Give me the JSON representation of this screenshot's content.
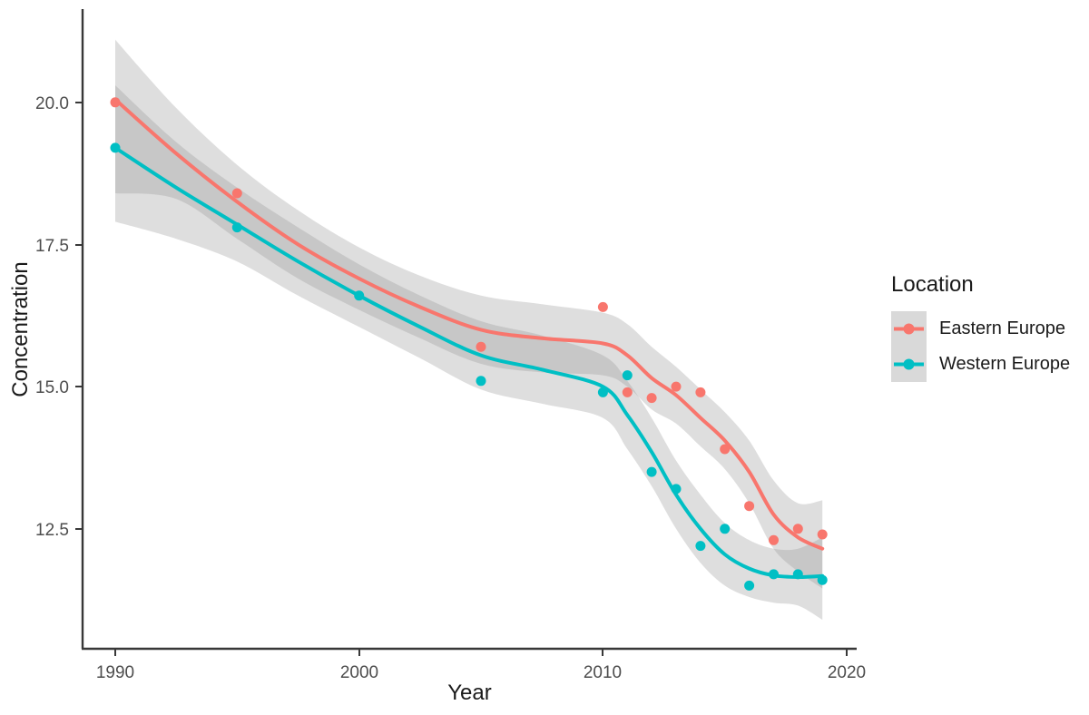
{
  "figure": {
    "background": "#ffffff"
  },
  "chart_data": {
    "type": "scatter",
    "smoother": "loess smooth lines with 95% confidence ribbons",
    "title": "",
    "xlabel": "Year",
    "ylabel": "Concentration",
    "x_ticks": [
      "1990",
      "2000",
      "2010",
      "2020"
    ],
    "x_tick_years": [
      1990,
      2000,
      2010,
      2020
    ],
    "y_ticks": [
      "12.5",
      "15.0",
      "17.5",
      "20.0"
    ],
    "y_tick_values": [
      12.5,
      15.0,
      17.5,
      20.0
    ],
    "xlim": [
      1988.66,
      2020.63
    ],
    "ylim": [
      10.39,
      21.64
    ],
    "grid": "off",
    "legend": {
      "title": "Location",
      "position": "right",
      "key_background": "#D9D9D9"
    },
    "band_color": "#999999",
    "band_opacity": 0.32,
    "axis_color": "#383838",
    "tick_label_color": "#4d4d4d",
    "series": [
      {
        "name": "Eastern Europe",
        "color": "#F8766D",
        "points": {
          "years": [
            1990,
            1995,
            2005,
            2010,
            2011,
            2012,
            2013,
            2014,
            2015,
            2016,
            2017,
            2018,
            2019
          ],
          "values": [
            20.0,
            18.4,
            15.7,
            16.4,
            14.9,
            14.8,
            15.0,
            14.9,
            13.9,
            12.9,
            12.3,
            12.5,
            12.4
          ]
        },
        "smooth": {
          "years": [
            1990,
            1992.5,
            1995,
            1997.5,
            2000,
            2002.5,
            2005,
            2007.5,
            2010,
            2011,
            2012,
            2013,
            2014,
            2015,
            2016,
            2017,
            2018,
            2019
          ],
          "values": [
            20.05,
            19.1,
            18.25,
            17.5,
            16.9,
            16.4,
            16.0,
            15.85,
            15.76,
            15.55,
            15.15,
            14.85,
            14.45,
            14.05,
            13.5,
            12.75,
            12.35,
            12.15
          ],
          "upper": [
            21.1,
            19.9,
            18.9,
            18.1,
            17.45,
            16.95,
            16.6,
            16.45,
            16.3,
            16.1,
            15.7,
            15.35,
            14.95,
            14.55,
            14.05,
            13.35,
            12.95,
            13.0
          ],
          "lower": [
            18.4,
            18.3,
            17.6,
            16.9,
            16.35,
            15.85,
            15.4,
            15.25,
            15.2,
            15.0,
            14.6,
            14.35,
            13.95,
            13.55,
            12.95,
            12.15,
            11.75,
            11.45
          ]
        }
      },
      {
        "name": "Western Europe",
        "color": "#00BFC4",
        "points": {
          "years": [
            1990,
            1995,
            2000,
            2005,
            2010,
            2011,
            2012,
            2013,
            2014,
            2015,
            2016,
            2017,
            2018,
            2019
          ],
          "values": [
            19.2,
            17.8,
            16.6,
            15.1,
            14.9,
            15.2,
            13.5,
            13.2,
            12.2,
            12.5,
            11.5,
            11.7,
            11.7,
            11.6
          ]
        },
        "smooth": {
          "years": [
            1990,
            1992.5,
            1995,
            1997.5,
            2000,
            2002.5,
            2005,
            2007.5,
            2010,
            2011,
            2012,
            2013,
            2014,
            2015,
            2016,
            2017,
            2018,
            2019
          ],
          "values": [
            19.2,
            18.5,
            17.85,
            17.2,
            16.6,
            16.05,
            15.55,
            15.3,
            15.0,
            14.5,
            13.85,
            13.1,
            12.5,
            12.05,
            11.8,
            11.68,
            11.65,
            11.67
          ],
          "upper": [
            20.3,
            19.3,
            18.5,
            17.8,
            17.15,
            16.6,
            16.15,
            15.9,
            15.55,
            15.1,
            14.45,
            13.7,
            13.1,
            12.6,
            12.3,
            12.15,
            12.15,
            12.35
          ],
          "lower": [
            17.9,
            17.6,
            17.2,
            16.6,
            16.05,
            15.5,
            14.95,
            14.7,
            14.45,
            13.9,
            13.25,
            12.5,
            11.9,
            11.5,
            11.3,
            11.2,
            11.15,
            10.9
          ]
        }
      }
    ]
  }
}
